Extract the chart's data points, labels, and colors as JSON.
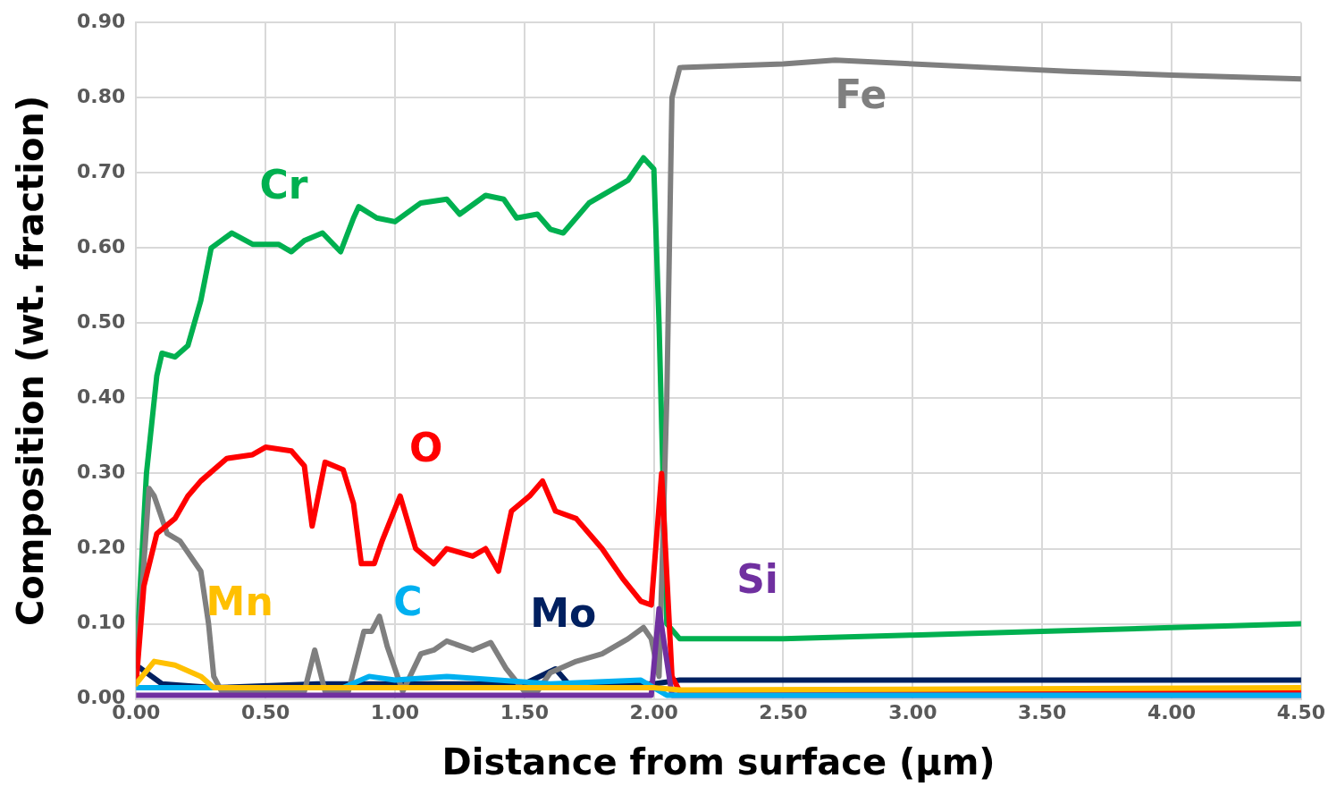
{
  "chart_data": {
    "type": "line",
    "xlabel": "Distance from surface (μm)",
    "ylabel": "Composition (wt. fraction)",
    "xlim": [
      0,
      4.5
    ],
    "ylim": [
      0,
      0.9
    ],
    "xticks": [
      {
        "value": 0,
        "label": "0.00"
      },
      {
        "value": 0.5,
        "label": "0.50"
      },
      {
        "value": 1,
        "label": "1.00"
      },
      {
        "value": 1.5,
        "label": "1.50"
      },
      {
        "value": 2,
        "label": "2.00"
      },
      {
        "value": 2.5,
        "label": "2.50"
      },
      {
        "value": 3,
        "label": "3.00"
      },
      {
        "value": 3.5,
        "label": "3.50"
      },
      {
        "value": 4,
        "label": "4.00"
      },
      {
        "value": 4.5,
        "label": "4.50"
      }
    ],
    "yticks": [
      {
        "value": 0,
        "label": "0.00"
      },
      {
        "value": 0.1,
        "label": "0.10"
      },
      {
        "value": 0.2,
        "label": "0.20"
      },
      {
        "value": 0.3,
        "label": "0.30"
      },
      {
        "value": 0.4,
        "label": "0.40"
      },
      {
        "value": 0.5,
        "label": "0.50"
      },
      {
        "value": 0.6,
        "label": "0.60"
      },
      {
        "value": 0.7,
        "label": "0.70"
      },
      {
        "value": 0.8,
        "label": "0.80"
      },
      {
        "value": 0.9,
        "label": "0.90"
      }
    ],
    "grid": true,
    "legend": false,
    "marker": "none",
    "line_style": "solid",
    "series": [
      {
        "name": "Mn",
        "color": "#ffc000",
        "x": [
          0,
          0.07,
          0.15,
          0.25,
          0.3,
          1.0,
          2.0,
          2.1,
          3.0,
          4.5
        ],
        "values": [
          0.02,
          0.05,
          0.045,
          0.03,
          0.015,
          0.015,
          0.015,
          0.012,
          0.013,
          0.015
        ]
      },
      {
        "name": "C",
        "color": "#00b0f0",
        "x": [
          0,
          0.8,
          0.9,
          1.0,
          1.2,
          1.4,
          1.6,
          1.95,
          2.05,
          4.5
        ],
        "values": [
          0.015,
          0.015,
          0.03,
          0.025,
          0.03,
          0.025,
          0.02,
          0.025,
          0.005,
          0.005
        ]
      },
      {
        "name": "Si",
        "color": "#7030a0",
        "x": [
          0,
          1.99,
          2.02,
          2.07,
          4.5
        ],
        "values": [
          0.005,
          0.005,
          0.12,
          0.005,
          0.005
        ]
      },
      {
        "name": "O",
        "color": "#ff0000",
        "x": [
          0,
          0.03,
          0.08,
          0.15,
          0.2,
          0.25,
          0.35,
          0.45,
          0.5,
          0.6,
          0.65,
          0.68,
          0.73,
          0.8,
          0.84,
          0.87,
          0.92,
          0.95,
          1.02,
          1.08,
          1.15,
          1.2,
          1.3,
          1.35,
          1.4,
          1.45,
          1.52,
          1.57,
          1.62,
          1.7,
          1.8,
          1.88,
          1.95,
          1.99,
          2.03,
          2.07,
          2.1,
          4.5
        ],
        "values": [
          0.02,
          0.15,
          0.22,
          0.24,
          0.27,
          0.29,
          0.32,
          0.325,
          0.335,
          0.33,
          0.31,
          0.23,
          0.315,
          0.305,
          0.26,
          0.18,
          0.18,
          0.21,
          0.27,
          0.2,
          0.18,
          0.2,
          0.19,
          0.2,
          0.17,
          0.25,
          0.27,
          0.29,
          0.25,
          0.24,
          0.2,
          0.16,
          0.13,
          0.125,
          0.3,
          0.03,
          0.01,
          0.01
        ]
      },
      {
        "name": "Fe",
        "color": "#7f7f7f",
        "x": [
          0,
          0.05,
          0.07,
          0.12,
          0.17,
          0.25,
          0.28,
          0.3,
          0.33,
          0.65,
          0.69,
          0.73,
          0.82,
          0.88,
          0.91,
          0.94,
          0.97,
          1.0,
          1.03,
          1.1,
          1.15,
          1.2,
          1.3,
          1.37,
          1.43,
          1.5,
          1.55,
          1.6,
          1.7,
          1.8,
          1.9,
          1.96,
          1.99,
          2.02,
          2.05,
          2.07,
          2.1,
          2.5,
          2.7,
          3.0,
          3.3,
          3.6,
          4.0,
          4.5
        ],
        "values": [
          0.03,
          0.28,
          0.27,
          0.22,
          0.21,
          0.17,
          0.1,
          0.03,
          0.01,
          0.01,
          0.065,
          0.01,
          0.01,
          0.09,
          0.09,
          0.11,
          0.07,
          0.04,
          0.01,
          0.06,
          0.065,
          0.077,
          0.065,
          0.075,
          0.04,
          0.01,
          0.01,
          0.035,
          0.05,
          0.06,
          0.08,
          0.095,
          0.08,
          0.03,
          0.4,
          0.8,
          0.84,
          0.845,
          0.85,
          0.845,
          0.84,
          0.835,
          0.83,
          0.825
        ]
      },
      {
        "name": "Cr",
        "color": "#00b050",
        "x": [
          0,
          0.04,
          0.08,
          0.1,
          0.15,
          0.2,
          0.25,
          0.29,
          0.33,
          0.37,
          0.45,
          0.55,
          0.6,
          0.65,
          0.72,
          0.79,
          0.84,
          0.86,
          0.93,
          1.0,
          1.1,
          1.2,
          1.25,
          1.35,
          1.42,
          1.47,
          1.55,
          1.6,
          1.65,
          1.75,
          1.85,
          1.9,
          1.96,
          2.0,
          2.02,
          2.05,
          2.1,
          2.5,
          3.0,
          3.5,
          4.0,
          4.5
        ],
        "values": [
          0.05,
          0.3,
          0.43,
          0.46,
          0.455,
          0.47,
          0.53,
          0.6,
          0.61,
          0.62,
          0.605,
          0.605,
          0.595,
          0.61,
          0.62,
          0.595,
          0.64,
          0.655,
          0.64,
          0.635,
          0.66,
          0.665,
          0.645,
          0.67,
          0.665,
          0.64,
          0.645,
          0.625,
          0.62,
          0.66,
          0.68,
          0.69,
          0.72,
          0.705,
          0.5,
          0.1,
          0.08,
          0.08,
          0.085,
          0.09,
          0.095,
          0.1
        ]
      },
      {
        "name": "Mo",
        "color": "#002060",
        "x": [
          0,
          0.1,
          0.3,
          0.7,
          1.5,
          1.62,
          1.67,
          2.0,
          2.1,
          3.0,
          4.5
        ],
        "values": [
          0.045,
          0.02,
          0.015,
          0.02,
          0.02,
          0.04,
          0.02,
          0.02,
          0.025,
          0.025,
          0.025
        ]
      }
    ]
  }
}
